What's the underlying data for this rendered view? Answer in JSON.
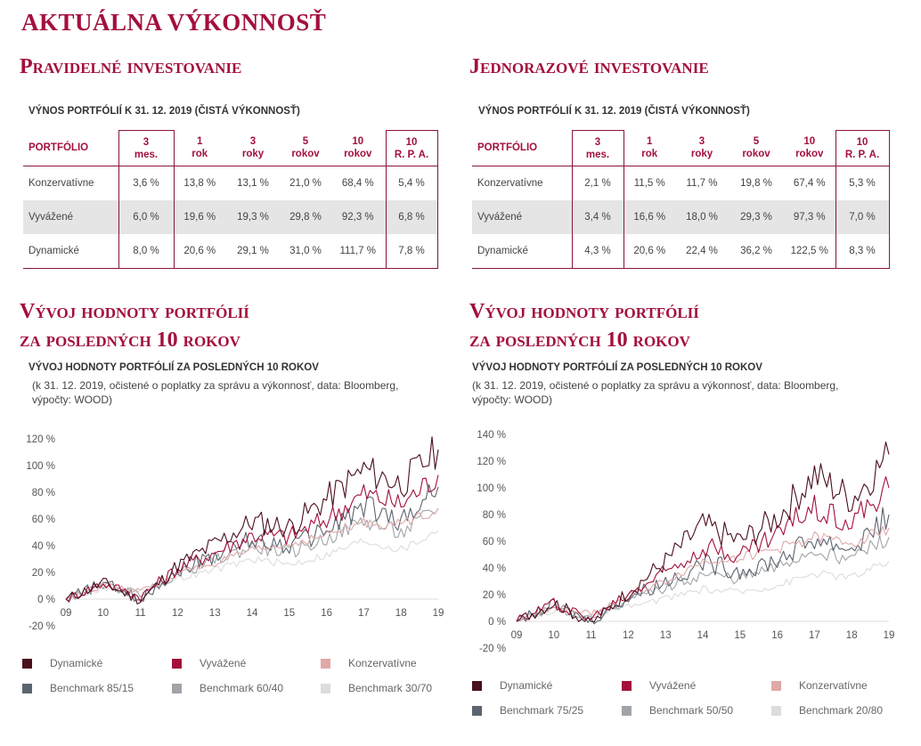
{
  "page_title": "AKTUÁLNA VÝKONNOSŤ",
  "panels": [
    {
      "section_title": "Pravidelné investovanie",
      "table_caption": "VÝNOS PORTFÓLIÍ K 31. 12. 2019 (ČISTÁ VÝKONNOSŤ)",
      "headers": [
        "PORTFÓLIO",
        [
          "3",
          "mes."
        ],
        [
          "1",
          "rok"
        ],
        [
          "3",
          "roky"
        ],
        [
          "5",
          "rokov"
        ],
        [
          "10",
          "rokov"
        ],
        [
          "10",
          "R. P. A."
        ]
      ],
      "rows": [
        [
          "Konzervatívne",
          "3,6 %",
          "13,8 %",
          "13,1 %",
          "21,0 %",
          "68,4 %",
          "5,4 %"
        ],
        [
          "Vyvážené",
          "6,0 %",
          "19,6 %",
          "19,3 %",
          "29,8 %",
          "92,3 %",
          "6,8 %"
        ],
        [
          "Dynamické",
          "8,0 %",
          "20,6 %",
          "29,1 %",
          "31,0 %",
          "111,7 %",
          "7,8 %"
        ]
      ],
      "chart_title": [
        "Vývoj hodnoty portfólií",
        "za posledných 10 rokov"
      ],
      "chart_caption": "VÝVOJ HODNOTY PORTFÓLIÍ ZA POSLEDNÝCH 10 ROKOV",
      "chart_note": "(k 31. 12. 2019, očistené o poplatky za správu a výkonnosť, data: Bloomberg, výpočty: WOOD)"
    },
    {
      "section_title": "Jednorazové investovanie",
      "table_caption": "VÝNOS PORTFÓLIÍ K 31. 12. 2019 (ČISTÁ VÝKONNOSŤ)",
      "headers": [
        "PORTFÓLIO",
        [
          "3",
          "mes."
        ],
        [
          "1",
          "rok"
        ],
        [
          "3",
          "roky"
        ],
        [
          "5",
          "rokov"
        ],
        [
          "10",
          "rokov"
        ],
        [
          "10",
          "R. P. A."
        ]
      ],
      "rows": [
        [
          "Konzervatívne",
          "2,1 %",
          "11,5 %",
          "11,7 %",
          "19,8 %",
          "67,4 %",
          "5,3 %"
        ],
        [
          "Vyvážené",
          "3,4 %",
          "16,6 %",
          "18,0 %",
          "29,3 %",
          "97,3 %",
          "7,0 %"
        ],
        [
          "Dynamické",
          "4,3 %",
          "20,6 %",
          "22,4 %",
          "36,2 %",
          "122,5 %",
          "8,3 %"
        ]
      ],
      "chart_title": [
        "Vývoj hodnoty portfólií",
        "za posledných 10 rokov"
      ],
      "chart_caption": "VÝVOJ HODNOTY PORTFÓLIÍ ZA POSLEDNÝCH 10 ROKOV",
      "chart_note": "(k 31. 12. 2019, očistené o poplatky za správu a výkonnosť, data: Bloomberg, výpočty: WOOD)"
    }
  ],
  "chart_data": [
    {
      "type": "line",
      "x": [
        "09",
        "10",
        "11",
        "12",
        "13",
        "14",
        "15",
        "16",
        "17",
        "18",
        "19"
      ],
      "ylim": [
        -20,
        120
      ],
      "yticks": [
        -20,
        0,
        20,
        40,
        60,
        80,
        100,
        120
      ],
      "ytick_labels": [
        "-20 %",
        "0 %",
        "20 %",
        "40 %",
        "60 %",
        "80 %",
        "100 %",
        "120 %"
      ],
      "grid": false,
      "legend_position": "bottom",
      "series": [
        {
          "name": "Dynamické",
          "color": "#4a0f1c",
          "values": [
            0,
            12,
            -1,
            25,
            41,
            58,
            54,
            75,
            97,
            86,
            112
          ]
        },
        {
          "name": "Vyvážené",
          "color": "#a3103c",
          "values": [
            0,
            12,
            2,
            23,
            35,
            48,
            47,
            60,
            79,
            71,
            93
          ]
        },
        {
          "name": "Konzervatívne",
          "color": "#e0a8a8",
          "values": [
            0,
            10,
            6,
            19,
            27,
            36,
            41,
            48,
            57,
            56,
            68
          ]
        },
        {
          "name": "Benchmark 85/15",
          "color": "#5c6470",
          "values": [
            0,
            12,
            0,
            22,
            33,
            45,
            40,
            52,
            70,
            58,
            84
          ]
        },
        {
          "name": "Benchmark 60/40",
          "color": "#a0a4a8",
          "values": [
            0,
            10,
            4,
            19,
            29,
            39,
            35,
            45,
            59,
            49,
            68
          ]
        },
        {
          "name": "Benchmark 30/70",
          "color": "#dcdcdc",
          "values": [
            0,
            8,
            6,
            15,
            22,
            30,
            26,
            33,
            44,
            37,
            51
          ]
        }
      ]
    },
    {
      "type": "line",
      "x": [
        "09",
        "10",
        "11",
        "12",
        "13",
        "14",
        "15",
        "16",
        "17",
        "18",
        "19"
      ],
      "ylim": [
        -20,
        140
      ],
      "yticks": [
        -20,
        0,
        20,
        40,
        60,
        80,
        100,
        120,
        140
      ],
      "ytick_labels": [
        "-20 %",
        "0 %",
        "20 %",
        "40 %",
        "60 %",
        "80 %",
        "100 %",
        "120 %",
        "140 %"
      ],
      "grid": false,
      "legend_position": "bottom",
      "series": [
        {
          "name": "Dynamické",
          "color": "#4a0f1c",
          "values": [
            0,
            14,
            -2,
            22,
            45,
            72,
            60,
            78,
            110,
            92,
            125
          ]
        },
        {
          "name": "Vyvážené",
          "color": "#a3103c",
          "values": [
            0,
            14,
            2,
            21,
            38,
            57,
            50,
            66,
            87,
            74,
            100
          ]
        },
        {
          "name": "Konzervatívne",
          "color": "#e0a8a8",
          "values": [
            0,
            11,
            6,
            19,
            30,
            45,
            48,
            54,
            63,
            59,
            70
          ]
        },
        {
          "name": "Benchmark 75/25",
          "color": "#5c6470",
          "values": [
            0,
            12,
            0,
            18,
            30,
            44,
            38,
            46,
            62,
            54,
            80
          ]
        },
        {
          "name": "Benchmark 50/50",
          "color": "#a0a4a8",
          "values": [
            0,
            10,
            3,
            15,
            25,
            35,
            32,
            40,
            53,
            47,
            63
          ]
        },
        {
          "name": "Benchmark 20/80",
          "color": "#dcdcdc",
          "values": [
            0,
            8,
            5,
            11,
            17,
            24,
            22,
            27,
            36,
            33,
            45
          ]
        }
      ]
    }
  ]
}
